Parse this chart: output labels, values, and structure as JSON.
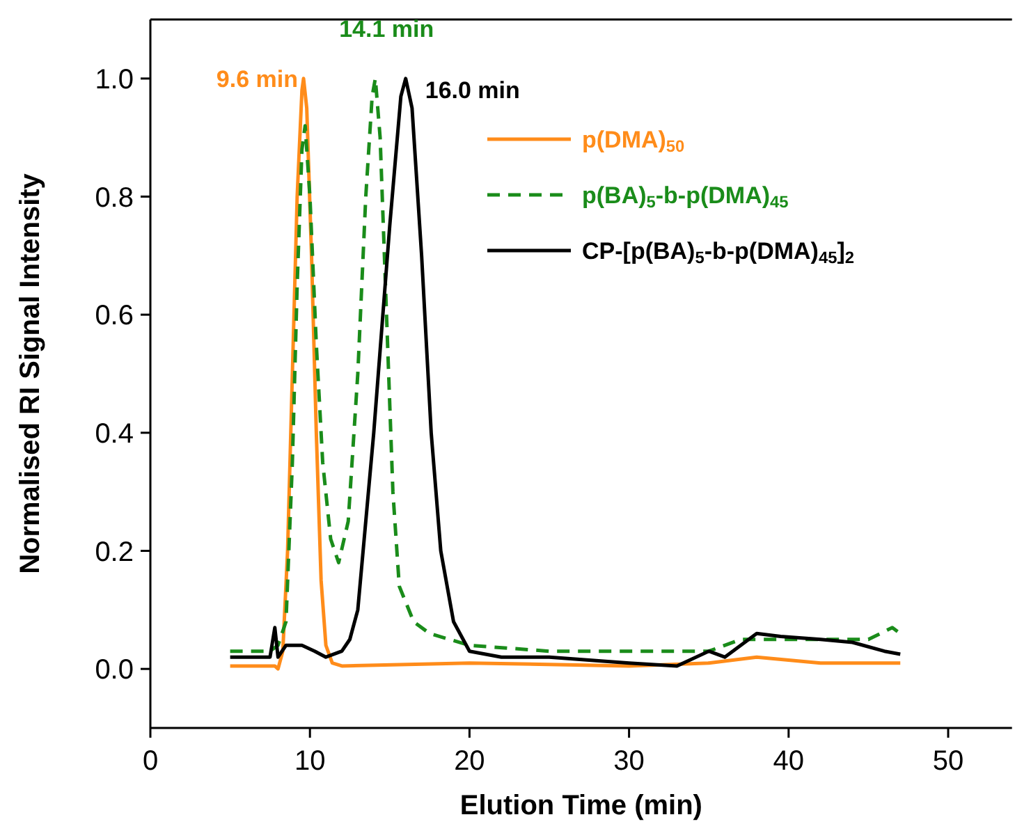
{
  "chart_data": {
    "type": "line",
    "xlabel": "Elution Time (min)",
    "ylabel": "Normalised RI Signal Intensity",
    "xlim": [
      0,
      54
    ],
    "xticks": [
      0,
      10,
      20,
      30,
      40,
      50
    ],
    "ylim": [
      -0.1,
      1.1
    ],
    "yticks": [
      {
        "value": 0,
        "label": "0.0"
      },
      0.2,
      0.4,
      0.6,
      0.8,
      {
        "value": 1,
        "label": "1.0"
      }
    ],
    "legend": "top right",
    "grid": false,
    "series": [
      {
        "name": "p(DMA)$_{50}$",
        "color": "#ff8c1a",
        "line_style": "solid",
        "x": [
          5,
          7.8,
          8.0,
          8.3,
          8.6,
          8.9,
          9.2,
          9.5,
          9.6,
          9.8,
          10.1,
          10.4,
          10.7,
          11.0,
          11.4,
          12,
          20,
          30,
          35,
          38,
          42,
          47
        ],
        "values": [
          0.005,
          0.005,
          0.0,
          0.03,
          0.2,
          0.5,
          0.8,
          0.98,
          1.0,
          0.95,
          0.7,
          0.4,
          0.15,
          0.04,
          0.01,
          0.005,
          0.01,
          0.005,
          0.01,
          0.02,
          0.01,
          0.01
        ]
      },
      {
        "name": "p(BA)$_{5}$-b-p(DMA)$_{45}$",
        "color": "#1a8c1a",
        "line_style": "dashed",
        "x": [
          5,
          7.5,
          8.0,
          8.5,
          8.9,
          9.2,
          9.5,
          9.7,
          10.0,
          10.4,
          10.8,
          11.3,
          11.8,
          12.4,
          13.0,
          13.5,
          13.9,
          14.1,
          14.4,
          14.8,
          15.2,
          15.6,
          16.5,
          17.5,
          20,
          25,
          30,
          35,
          37,
          40,
          43,
          45,
          46.5,
          47
        ],
        "values": [
          0.03,
          0.03,
          0.04,
          0.08,
          0.35,
          0.65,
          0.88,
          0.92,
          0.8,
          0.55,
          0.35,
          0.22,
          0.18,
          0.25,
          0.5,
          0.8,
          0.97,
          1.0,
          0.9,
          0.6,
          0.3,
          0.14,
          0.08,
          0.06,
          0.04,
          0.03,
          0.03,
          0.03,
          0.05,
          0.05,
          0.05,
          0.05,
          0.07,
          0.06
        ]
      },
      {
        "name": "CP-[p(BA)$_{5}$-b-p(DMA)$_{45}$]$_{2}$",
        "color": "#000000",
        "line_style": "solid",
        "x": [
          5,
          7.5,
          7.8,
          8.0,
          8.5,
          9.5,
          10.3,
          11,
          12,
          12.5,
          13,
          14,
          15,
          15.7,
          16.0,
          16.4,
          17,
          17.6,
          18.2,
          19,
          20,
          22,
          25,
          30,
          33,
          35,
          36,
          37,
          38,
          39.5,
          42,
          44,
          46,
          47
        ],
        "values": [
          0.02,
          0.02,
          0.07,
          0.02,
          0.04,
          0.04,
          0.03,
          0.02,
          0.03,
          0.05,
          0.1,
          0.4,
          0.75,
          0.97,
          1.0,
          0.95,
          0.7,
          0.4,
          0.2,
          0.08,
          0.03,
          0.02,
          0.02,
          0.01,
          0.005,
          0.03,
          0.02,
          0.04,
          0.06,
          0.055,
          0.05,
          0.045,
          0.03,
          0.025
        ]
      }
    ],
    "annotations": [
      {
        "text": "9.6 min",
        "x": 9.6,
        "y": 1.0
      },
      {
        "text": "14.1 min",
        "x": 14.1,
        "y": 1.0
      },
      {
        "text": "16.0 min",
        "x": 16.0,
        "y": 1.0
      }
    ]
  }
}
